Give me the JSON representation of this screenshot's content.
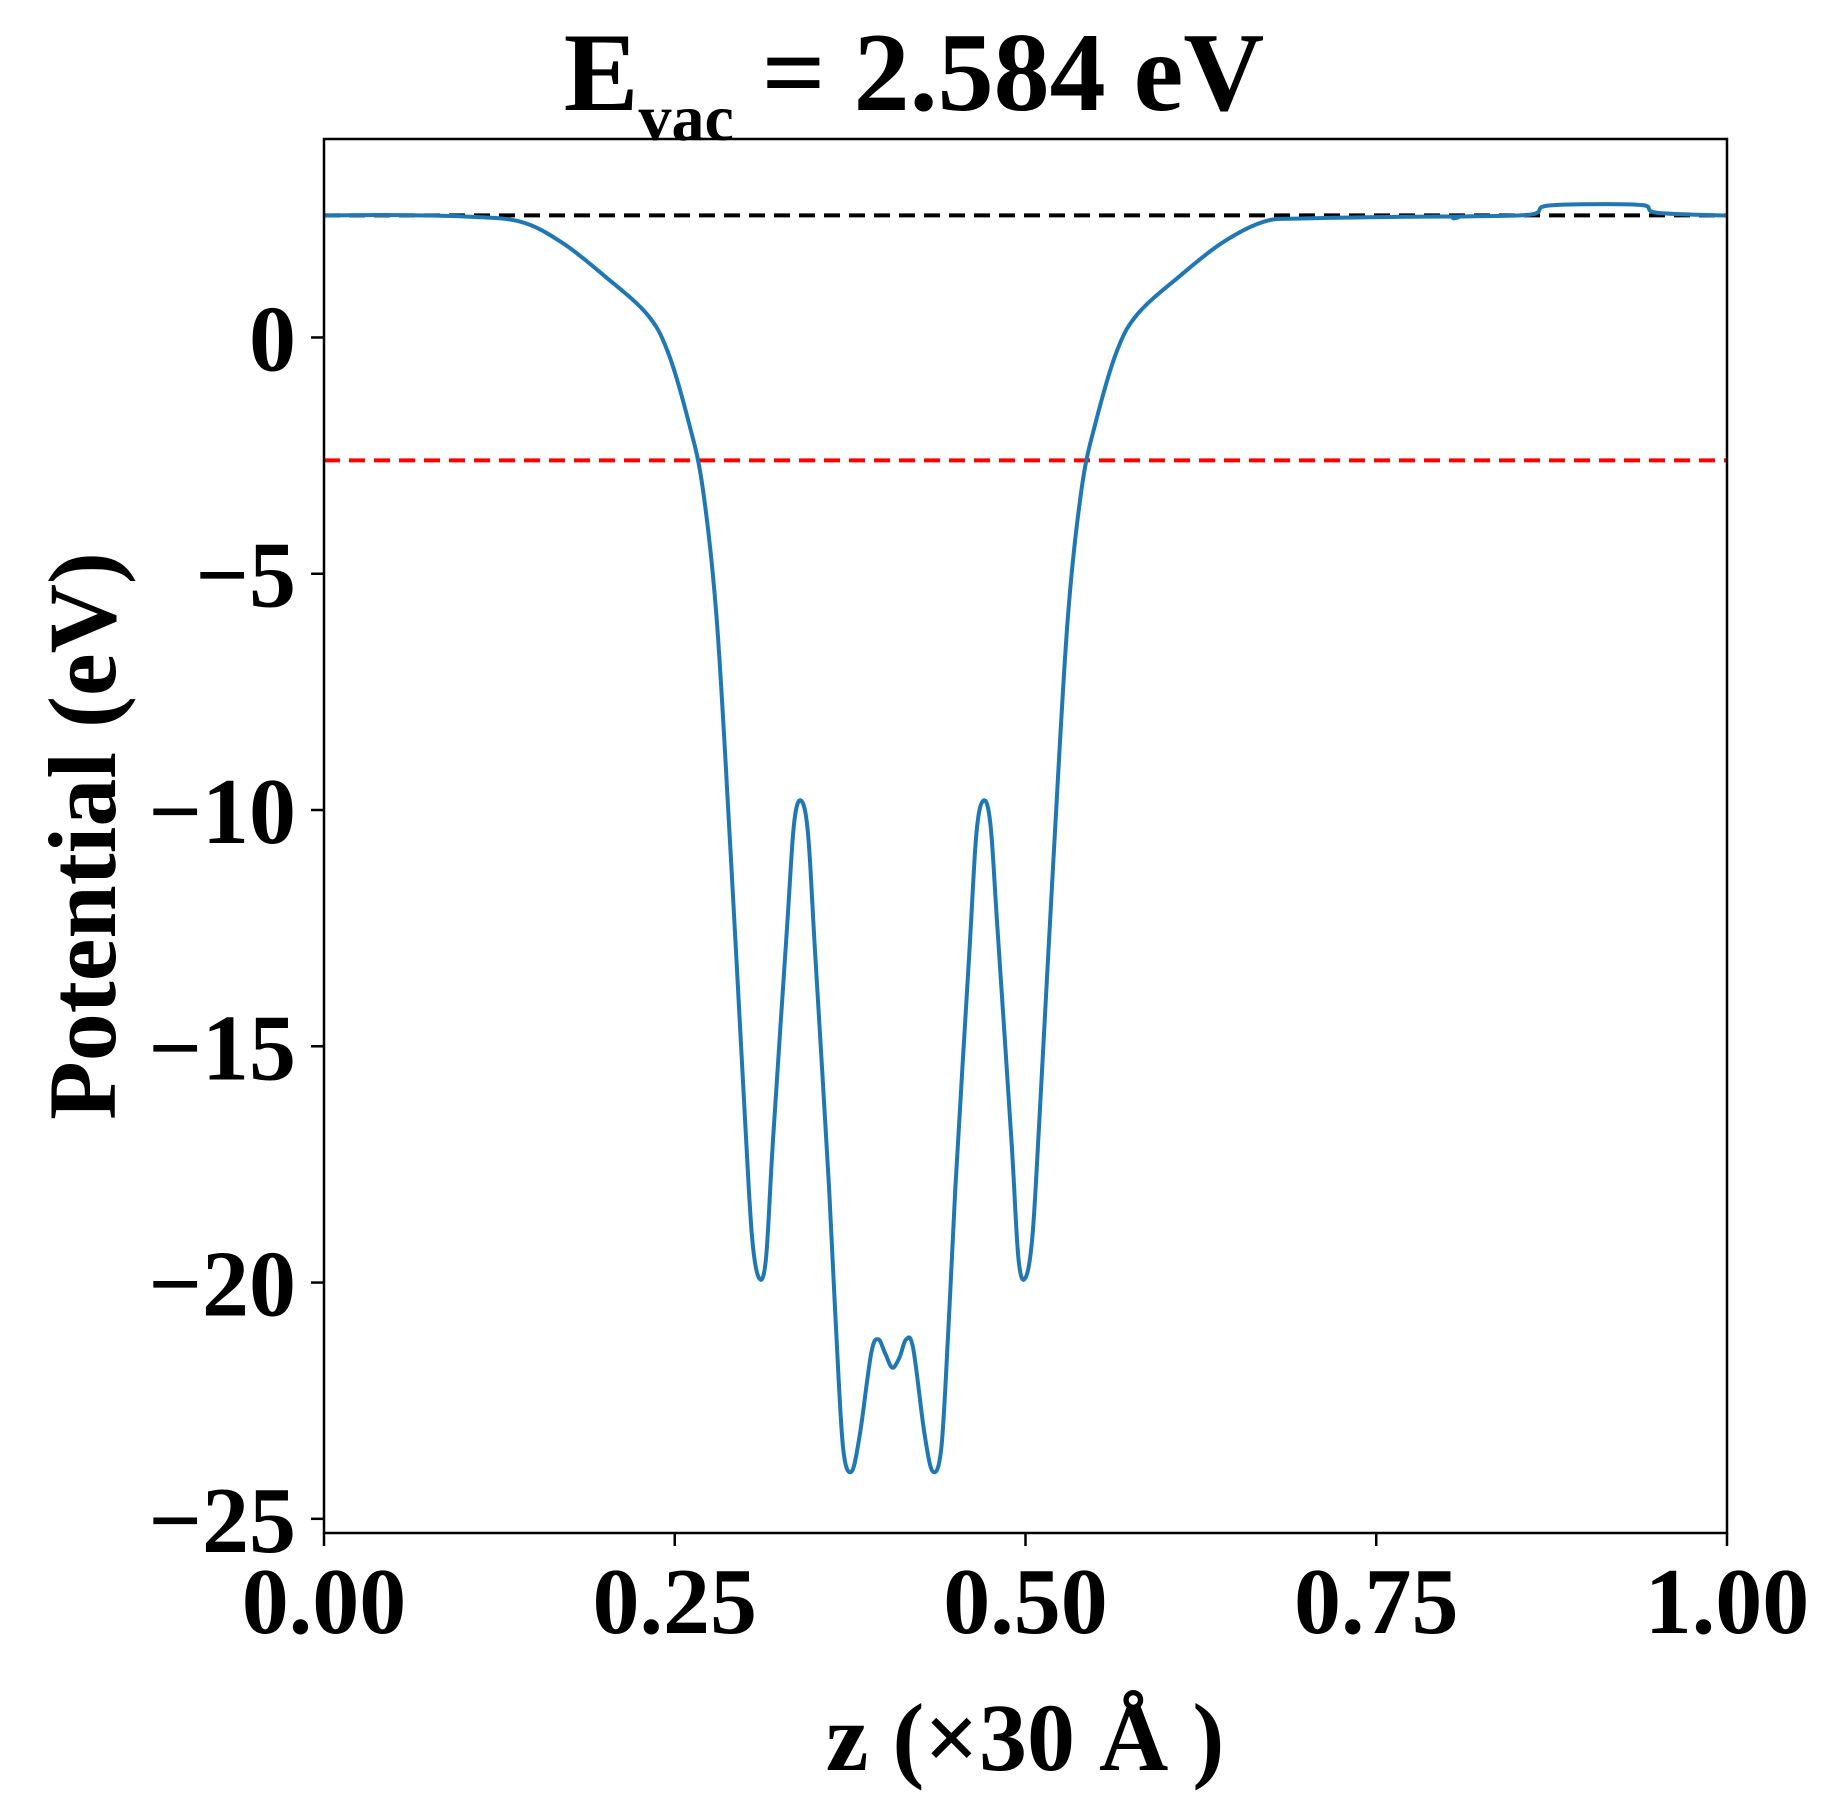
{
  "chart_data": {
    "type": "line",
    "title": {
      "main": "E",
      "subscript": "vac",
      "rest": " = 2.584 eV"
    },
    "xlabel": "z (×30 Å )",
    "ylabel": "Potential (eV)",
    "xlim": [
      0,
      1
    ],
    "ylim": [
      -25.3,
      4.2
    ],
    "grid": false,
    "x_ticks": [
      {
        "value": 0,
        "label": "0.00"
      },
      {
        "value": 0.25,
        "label": "0.25"
      },
      {
        "value": 0.5,
        "label": "0.50"
      },
      {
        "value": 0.75,
        "label": "0.75"
      },
      {
        "value": 1,
        "label": "1.00"
      }
    ],
    "y_ticks": [
      {
        "value": 0,
        "label": "0"
      },
      {
        "value": -5,
        "label": "−5"
      },
      {
        "value": -10,
        "label": "−10"
      },
      {
        "value": -15,
        "label": "−15"
      },
      {
        "value": -20,
        "label": "−20"
      },
      {
        "value": -25,
        "label": "−25"
      }
    ],
    "reference_lines": [
      {
        "y": 2.584,
        "color": "#000000",
        "style": "dashed"
      },
      {
        "y": -2.6,
        "color": "#ff0000",
        "style": "dashed"
      }
    ],
    "series": [
      {
        "color": "#1f77b4",
        "points": [
          [
            0.0,
            2.58
          ],
          [
            0.05,
            2.59
          ],
          [
            0.1,
            2.56
          ],
          [
            0.14,
            2.45
          ],
          [
            0.17,
            2.0
          ],
          [
            0.2,
            1.3
          ],
          [
            0.23,
            0.5
          ],
          [
            0.245,
            -0.3
          ],
          [
            0.26,
            -1.8
          ],
          [
            0.27,
            -3.2
          ],
          [
            0.28,
            -6.0
          ],
          [
            0.29,
            -11.0
          ],
          [
            0.3,
            -16.5
          ],
          [
            0.305,
            -19.0
          ],
          [
            0.31,
            -19.9
          ],
          [
            0.315,
            -19.5
          ],
          [
            0.32,
            -17.0
          ],
          [
            0.33,
            -12.5
          ],
          [
            0.335,
            -10.3
          ],
          [
            0.34,
            -9.8
          ],
          [
            0.345,
            -10.5
          ],
          [
            0.35,
            -13.0
          ],
          [
            0.36,
            -18.0
          ],
          [
            0.365,
            -21.0
          ],
          [
            0.37,
            -23.5
          ],
          [
            0.376,
            -24.0
          ],
          [
            0.382,
            -23.2
          ],
          [
            0.39,
            -21.5
          ],
          [
            0.395,
            -21.2
          ],
          [
            0.4,
            -21.5
          ],
          [
            0.405,
            -21.8
          ],
          [
            0.41,
            -21.6
          ],
          [
            0.415,
            -21.2
          ],
          [
            0.42,
            -21.4
          ],
          [
            0.428,
            -23.2
          ],
          [
            0.434,
            -24.0
          ],
          [
            0.44,
            -23.5
          ],
          [
            0.445,
            -21.0
          ],
          [
            0.45,
            -18.0
          ],
          [
            0.46,
            -13.0
          ],
          [
            0.465,
            -10.5
          ],
          [
            0.47,
            -9.8
          ],
          [
            0.475,
            -10.3
          ],
          [
            0.48,
            -12.5
          ],
          [
            0.49,
            -17.0
          ],
          [
            0.495,
            -19.5
          ],
          [
            0.5,
            -19.9
          ],
          [
            0.505,
            -19.0
          ],
          [
            0.51,
            -16.5
          ],
          [
            0.52,
            -11.0
          ],
          [
            0.53,
            -6.0
          ],
          [
            0.54,
            -3.2
          ],
          [
            0.55,
            -1.8
          ],
          [
            0.565,
            -0.3
          ],
          [
            0.58,
            0.5
          ],
          [
            0.61,
            1.3
          ],
          [
            0.64,
            2.0
          ],
          [
            0.67,
            2.45
          ],
          [
            0.7,
            2.52
          ],
          [
            0.8,
            2.56
          ],
          [
            0.805,
            2.52
          ],
          [
            0.81,
            2.56
          ],
          [
            0.86,
            2.6
          ],
          [
            0.87,
            2.78
          ],
          [
            0.9,
            2.82
          ],
          [
            0.94,
            2.8
          ],
          [
            0.95,
            2.64
          ],
          [
            1.0,
            2.58
          ]
        ]
      }
    ]
  }
}
